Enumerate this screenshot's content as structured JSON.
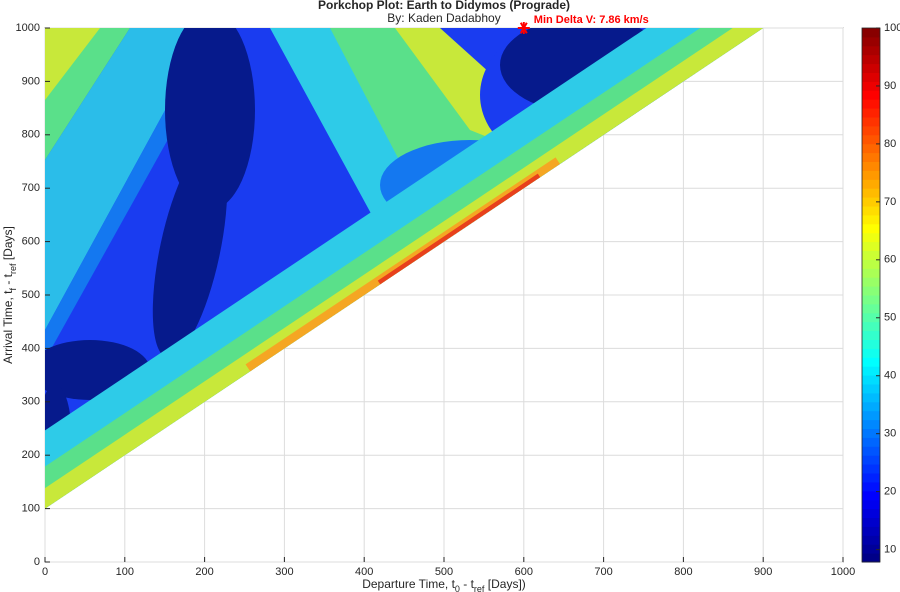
{
  "chart_data": {
    "type": "contour",
    "title": "Porkchop Plot: Earth to Didymos (Prograde)",
    "subtitle": "By: Kaden Dadabhoy",
    "x_label": [
      "Departure  Time,  t",
      "0",
      "  -  t",
      "ref",
      "  [Days])"
    ],
    "y_label": [
      "Arrival  Time,  t",
      "f",
      "  -  t",
      "ref",
      "  [Days]"
    ],
    "xlim": [
      0,
      1000
    ],
    "ylim": [
      0,
      1000
    ],
    "xticks": [
      0,
      100,
      200,
      300,
      400,
      500,
      600,
      700,
      800,
      900,
      1000
    ],
    "yticks": [
      0,
      100,
      200,
      300,
      400,
      500,
      600,
      700,
      800,
      900,
      1000
    ],
    "clim": [
      7.86,
      100
    ],
    "cticks": [
      10,
      20,
      30,
      40,
      50,
      60,
      70,
      80,
      90,
      100
    ],
    "grid": true,
    "min_point": {
      "x": 600,
      "y": 1000,
      "label": "Min Delta V: 7.86 km/s",
      "color": "#ff0000"
    }
  }
}
